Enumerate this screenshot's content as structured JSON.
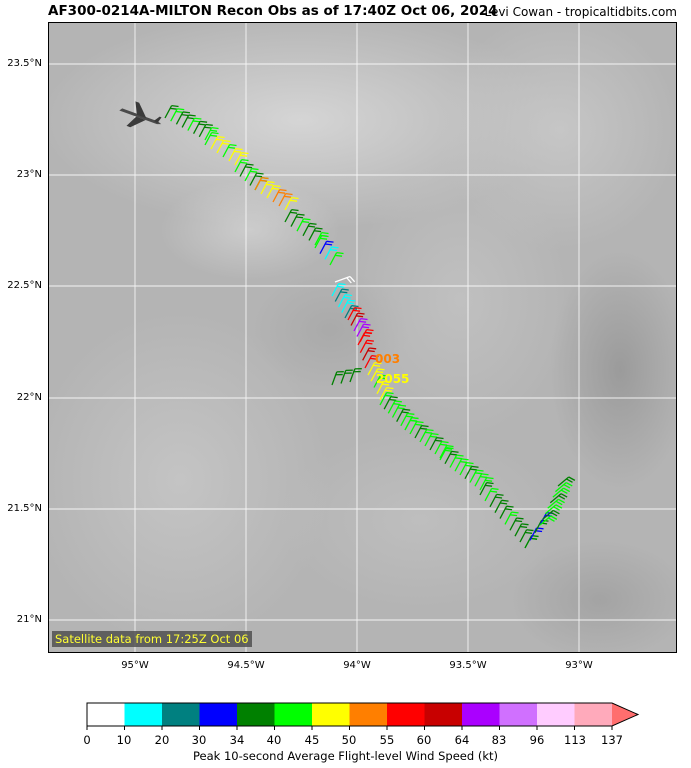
{
  "header": {
    "title": "AF300-0214A-MILTON Recon Obs as of 17:40Z Oct 06, 2024",
    "credit": "Levi Cowan - tropicaltidbits.com"
  },
  "map": {
    "lat_labels": [
      "23.5°N",
      "23°N",
      "22.5°N",
      "22°N",
      "21.5°N",
      "21°N"
    ],
    "lon_labels": [
      "95°W",
      "94.5°W",
      "94°W",
      "93.5°W",
      "93°W"
    ],
    "satellite_note": "Satellite data from 17:25Z Oct 06",
    "obs_label_1": "003",
    "obs_label_1_color": "#ff7f00",
    "obs_label_2": "2055",
    "obs_label_2_color": "#ffff00",
    "aircraft_icon": "plane-icon"
  },
  "colorbar": {
    "title": "Peak 10-second Average Flight-level Wind Speed (kt)",
    "ticks": [
      "0",
      "10",
      "20",
      "30",
      "34",
      "40",
      "45",
      "50",
      "55",
      "60",
      "64",
      "83",
      "96",
      "113",
      "137"
    ],
    "colors": [
      "#ffffff",
      "#00ffff",
      "#008080",
      "#0000ff",
      "#008000",
      "#00ff00",
      "#ffff00",
      "#ff7f00",
      "#ff0000",
      "#c80000",
      "#aa00ff",
      "#d070ff",
      "#ffccff",
      "#ffaabb"
    ],
    "extend_color": "#ff6e6e"
  }
}
